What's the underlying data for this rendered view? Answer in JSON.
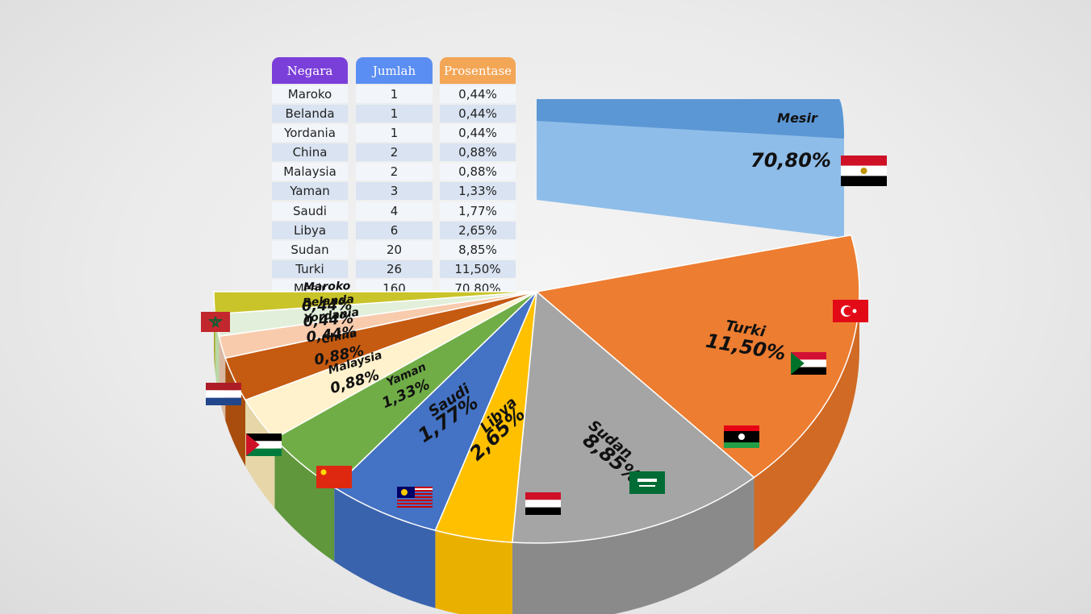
{
  "table": {
    "headers": [
      "Negara",
      "Jumlah",
      "Prosentase"
    ],
    "header_colors": [
      "#7b3fd9",
      "#5b8ef2",
      "#f3a656"
    ],
    "rows": [
      [
        "Maroko",
        "1",
        "0,44%"
      ],
      [
        "Belanda",
        "1",
        "0,44%"
      ],
      [
        "Yordania",
        "1",
        "0,44%"
      ],
      [
        "China",
        "2",
        "0,88%"
      ],
      [
        "Malaysia",
        "2",
        "0,88%"
      ],
      [
        "Yaman",
        "3",
        "1,33%"
      ],
      [
        "Saudi",
        "4",
        "1,77%"
      ],
      [
        "Libya",
        "6",
        "2,65%"
      ],
      [
        "Sudan",
        "20",
        "8,85%"
      ],
      [
        "Turki",
        "26",
        "11,50%"
      ],
      [
        "Mesir",
        "160",
        "70,80%"
      ]
    ]
  },
  "chart_data": {
    "type": "pie",
    "series": [
      {
        "name": "Mesir",
        "count": 160,
        "value": 70.8,
        "label": "70,80%",
        "color": "#8fbde9",
        "side": "#5b97d4",
        "flag": "egypt"
      },
      {
        "name": "Turki",
        "count": 26,
        "value": 11.5,
        "label": "11,50%",
        "color": "#ed7d31",
        "side": "#d06a24",
        "flag": "turkey"
      },
      {
        "name": "Sudan",
        "count": 20,
        "value": 8.85,
        "label": "8,85%",
        "color": "#a5a5a5",
        "side": "#8a8a8a",
        "flag": "sudan"
      },
      {
        "name": "Libya",
        "count": 6,
        "value": 2.65,
        "label": "2,65%",
        "color": "#ffc000",
        "side": "#eab000",
        "flag": "libya"
      },
      {
        "name": "Saudi",
        "count": 4,
        "value": 1.77,
        "label": "1,77%",
        "color": "#4472c4",
        "side": "#3a63ad",
        "flag": "saudi"
      },
      {
        "name": "Yaman",
        "count": 3,
        "value": 1.33,
        "label": "1,33%",
        "color": "#70ad47",
        "side": "#60973c",
        "flag": "yemen"
      },
      {
        "name": "Malaysia",
        "count": 2,
        "value": 0.88,
        "label": "0,88%",
        "color": "#fff2cc",
        "side": "#e6d6a8",
        "flag": "malaysia"
      },
      {
        "name": "China",
        "count": 2,
        "value": 0.88,
        "label": "0,88%",
        "color": "#c55a11",
        "side": "#a94d0e",
        "flag": "china"
      },
      {
        "name": "Yordania",
        "count": 1,
        "value": 0.44,
        "label": "0,44%",
        "color": "#f8cbad",
        "side": "#d9b8a2",
        "flag": "jordan"
      },
      {
        "name": "Belanda",
        "count": 1,
        "value": 0.44,
        "label": "0,44%",
        "color": "#e2efda",
        "side": "#b9d7a4",
        "flag": "netherlands"
      },
      {
        "name": "Maroko",
        "count": 1,
        "value": 0.44,
        "label": "0,44%",
        "color": "#c9c42a",
        "side": "#a8a421",
        "flag": "morocco"
      }
    ]
  }
}
